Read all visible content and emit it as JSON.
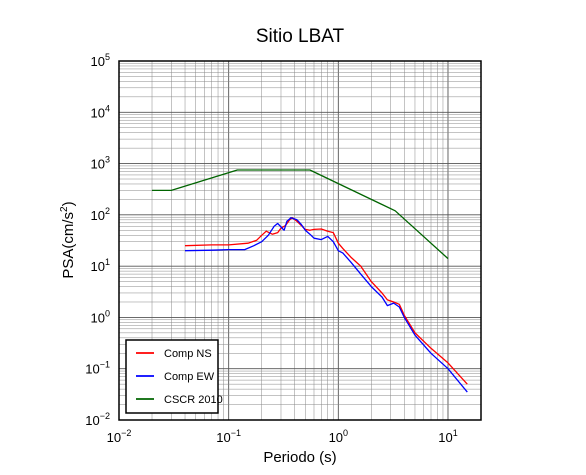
{
  "chart_data": {
    "type": "line",
    "title": "Sitio LBAT",
    "xlabel": "Periodo (s)",
    "ylabel_main": "PSA(cm/s",
    "ylabel_sup": "2",
    "ylabel_close": ")",
    "x_scale": "log",
    "y_scale": "log",
    "xlim": [
      0.01,
      20
    ],
    "ylim": [
      0.01,
      100000
    ],
    "grid": true,
    "legend_position": "bottom-left",
    "x_ticks": [
      {
        "base": "10",
        "exp": "−2"
      },
      {
        "base": "10",
        "exp": "−1"
      },
      {
        "base": "10",
        "exp": "0"
      },
      {
        "base": "10",
        "exp": "1"
      }
    ],
    "y_ticks": [
      {
        "base": "10",
        "exp": "−2"
      },
      {
        "base": "10",
        "exp": "−1"
      },
      {
        "base": "10",
        "exp": "0"
      },
      {
        "base": "10",
        "exp": "1"
      },
      {
        "base": "10",
        "exp": "2"
      },
      {
        "base": "10",
        "exp": "3"
      },
      {
        "base": "10",
        "exp": "4"
      },
      {
        "base": "10",
        "exp": "5"
      }
    ],
    "series": [
      {
        "name": "Comp NS",
        "color": "#ff0000",
        "points": [
          [
            0.04,
            25
          ],
          [
            0.07,
            26
          ],
          [
            0.1,
            26
          ],
          [
            0.15,
            28
          ],
          [
            0.18,
            32
          ],
          [
            0.2,
            40
          ],
          [
            0.22,
            48
          ],
          [
            0.25,
            42
          ],
          [
            0.28,
            45
          ],
          [
            0.3,
            55
          ],
          [
            0.33,
            62
          ],
          [
            0.36,
            80
          ],
          [
            0.38,
            88
          ],
          [
            0.42,
            75
          ],
          [
            0.46,
            62
          ],
          [
            0.5,
            52
          ],
          [
            0.55,
            50
          ],
          [
            0.6,
            52
          ],
          [
            0.7,
            53
          ],
          [
            0.8,
            48
          ],
          [
            0.9,
            45
          ],
          [
            1.0,
            28
          ],
          [
            1.1,
            22
          ],
          [
            1.3,
            15
          ],
          [
            1.6,
            10
          ],
          [
            2.0,
            5
          ],
          [
            2.5,
            3
          ],
          [
            2.8,
            2.2
          ],
          [
            3.2,
            2.0
          ],
          [
            3.6,
            1.8
          ],
          [
            4.0,
            1.1
          ],
          [
            5,
            0.5
          ],
          [
            7,
            0.25
          ],
          [
            10,
            0.13
          ],
          [
            15,
            0.05
          ]
        ]
      },
      {
        "name": "Comp EW",
        "color": "#0000ff",
        "points": [
          [
            0.04,
            20
          ],
          [
            0.07,
            20.5
          ],
          [
            0.1,
            21
          ],
          [
            0.14,
            21
          ],
          [
            0.17,
            25
          ],
          [
            0.2,
            30
          ],
          [
            0.23,
            40
          ],
          [
            0.26,
            60
          ],
          [
            0.28,
            68
          ],
          [
            0.3,
            58
          ],
          [
            0.32,
            50
          ],
          [
            0.34,
            75
          ],
          [
            0.37,
            88
          ],
          [
            0.42,
            80
          ],
          [
            0.46,
            65
          ],
          [
            0.5,
            50
          ],
          [
            0.55,
            42
          ],
          [
            0.6,
            35
          ],
          [
            0.7,
            33
          ],
          [
            0.8,
            38
          ],
          [
            0.9,
            30
          ],
          [
            1.0,
            20
          ],
          [
            1.1,
            18
          ],
          [
            1.3,
            12
          ],
          [
            1.6,
            7
          ],
          [
            2.0,
            4
          ],
          [
            2.5,
            2.5
          ],
          [
            2.8,
            1.7
          ],
          [
            3.2,
            1.9
          ],
          [
            3.6,
            1.6
          ],
          [
            4.0,
            1.0
          ],
          [
            5,
            0.45
          ],
          [
            7,
            0.2
          ],
          [
            10,
            0.1
          ],
          [
            15,
            0.035
          ]
        ]
      },
      {
        "name": "CSCR 2010",
        "color": "#006400",
        "points": [
          [
            0.02,
            300
          ],
          [
            0.03,
            300
          ],
          [
            0.12,
            750
          ],
          [
            0.55,
            750
          ],
          [
            3.3,
            120
          ],
          [
            10,
            14
          ]
        ]
      }
    ]
  }
}
